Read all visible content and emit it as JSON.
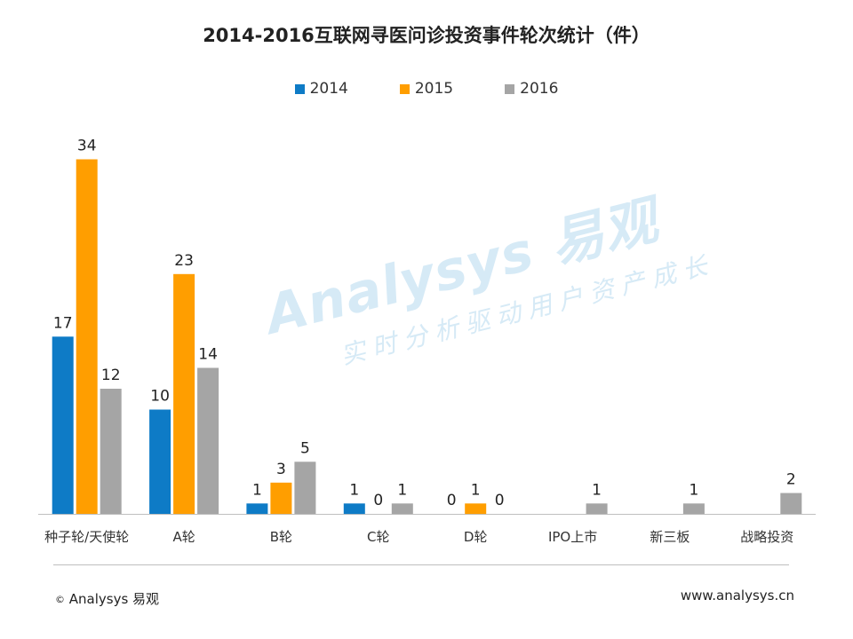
{
  "chart_data": {
    "type": "bar",
    "title": "2014-2016互联网寻医问诊投资事件轮次统计（件）",
    "xlabel": "",
    "ylabel": "",
    "ylim": [
      0,
      36
    ],
    "categories": [
      "种子轮/天使轮",
      "A轮",
      "B轮",
      "C轮",
      "D轮",
      "IPO上市",
      "新三板",
      "战略投资"
    ],
    "series": [
      {
        "name": "2014",
        "color": "#0E7BC6",
        "values": [
          17,
          10,
          1,
          1,
          0,
          null,
          null,
          null
        ]
      },
      {
        "name": "2015",
        "color": "#FF9E00",
        "values": [
          34,
          23,
          3,
          0,
          1,
          null,
          null,
          null
        ]
      },
      {
        "name": "2016",
        "color": "#A5A5A5",
        "values": [
          12,
          14,
          5,
          1,
          0,
          1,
          1,
          2
        ]
      }
    ],
    "legend_position": "top",
    "grid": false
  },
  "watermark": {
    "brand": "Analysys 易观",
    "tagline": "实时分析驱动用户资产成长"
  },
  "footer": {
    "copyright_symbol": "©",
    "brand": "Analysys 易观",
    "url": "www.analysys.cn"
  }
}
